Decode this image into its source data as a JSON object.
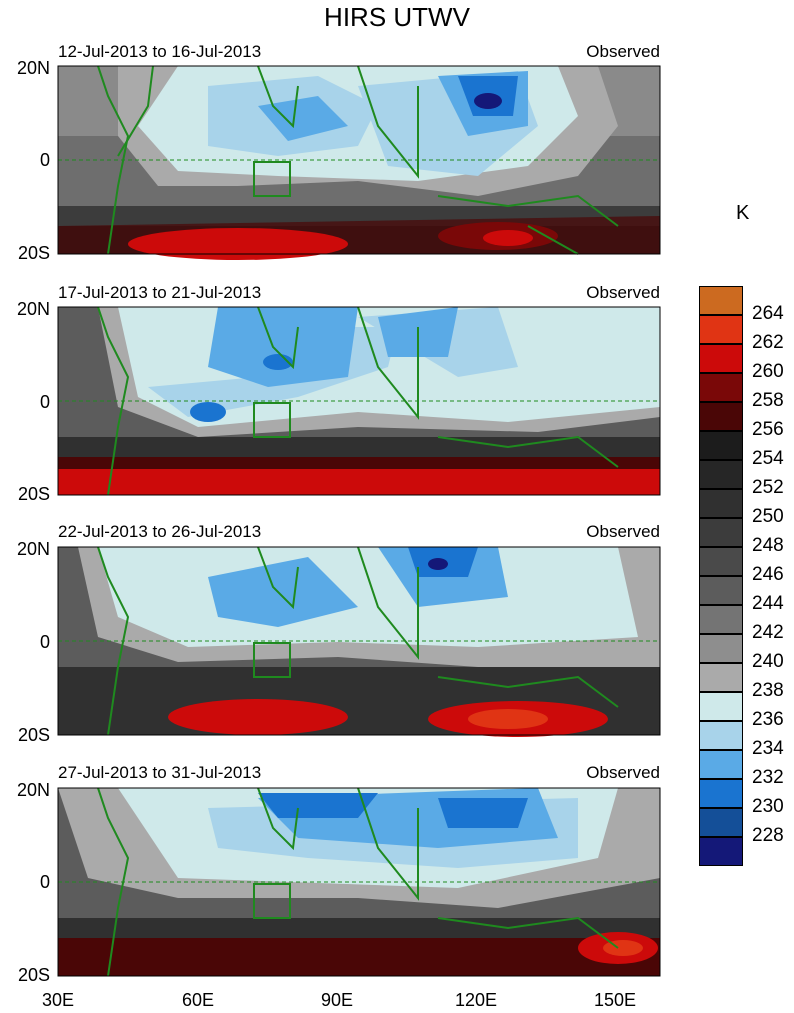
{
  "title": "HIRS UTWV",
  "unit": "K",
  "panels": [
    {
      "date_range": "12-Jul-2013 to 16-Jul-2013",
      "tag": "Observed"
    },
    {
      "date_range": "17-Jul-2013 to 21-Jul-2013",
      "tag": "Observed"
    },
    {
      "date_range": "22-Jul-2013 to 26-Jul-2013",
      "tag": "Observed"
    },
    {
      "date_range": "27-Jul-2013 to 31-Jul-2013",
      "tag": "Observed"
    }
  ],
  "lat_labels": [
    "20N",
    "0",
    "20S"
  ],
  "lon_labels": [
    "30E",
    "60E",
    "90E",
    "120E",
    "150E"
  ],
  "colorbar": {
    "labels": [
      "264",
      "262",
      "260",
      "258",
      "256",
      "254",
      "252",
      "250",
      "248",
      "246",
      "244",
      "242",
      "240",
      "238",
      "236",
      "234",
      "232",
      "230",
      "228"
    ],
    "colors": [
      "#cc6a20",
      "#e03414",
      "#cc0a0a",
      "#7a0808",
      "#4a0606",
      "#1c1c1c",
      "#262626",
      "#303030",
      "#3c3c3c",
      "#4a4a4a",
      "#5c5c5c",
      "#747474",
      "#8e8e8e",
      "#aaaaaa",
      "#cfe9ea",
      "#a8d3ea",
      "#5aaae6",
      "#1a74d0",
      "#144f98",
      "#141878"
    ]
  },
  "map": {
    "land_color": "#1f8a1f",
    "equator_style": "dashed"
  }
}
